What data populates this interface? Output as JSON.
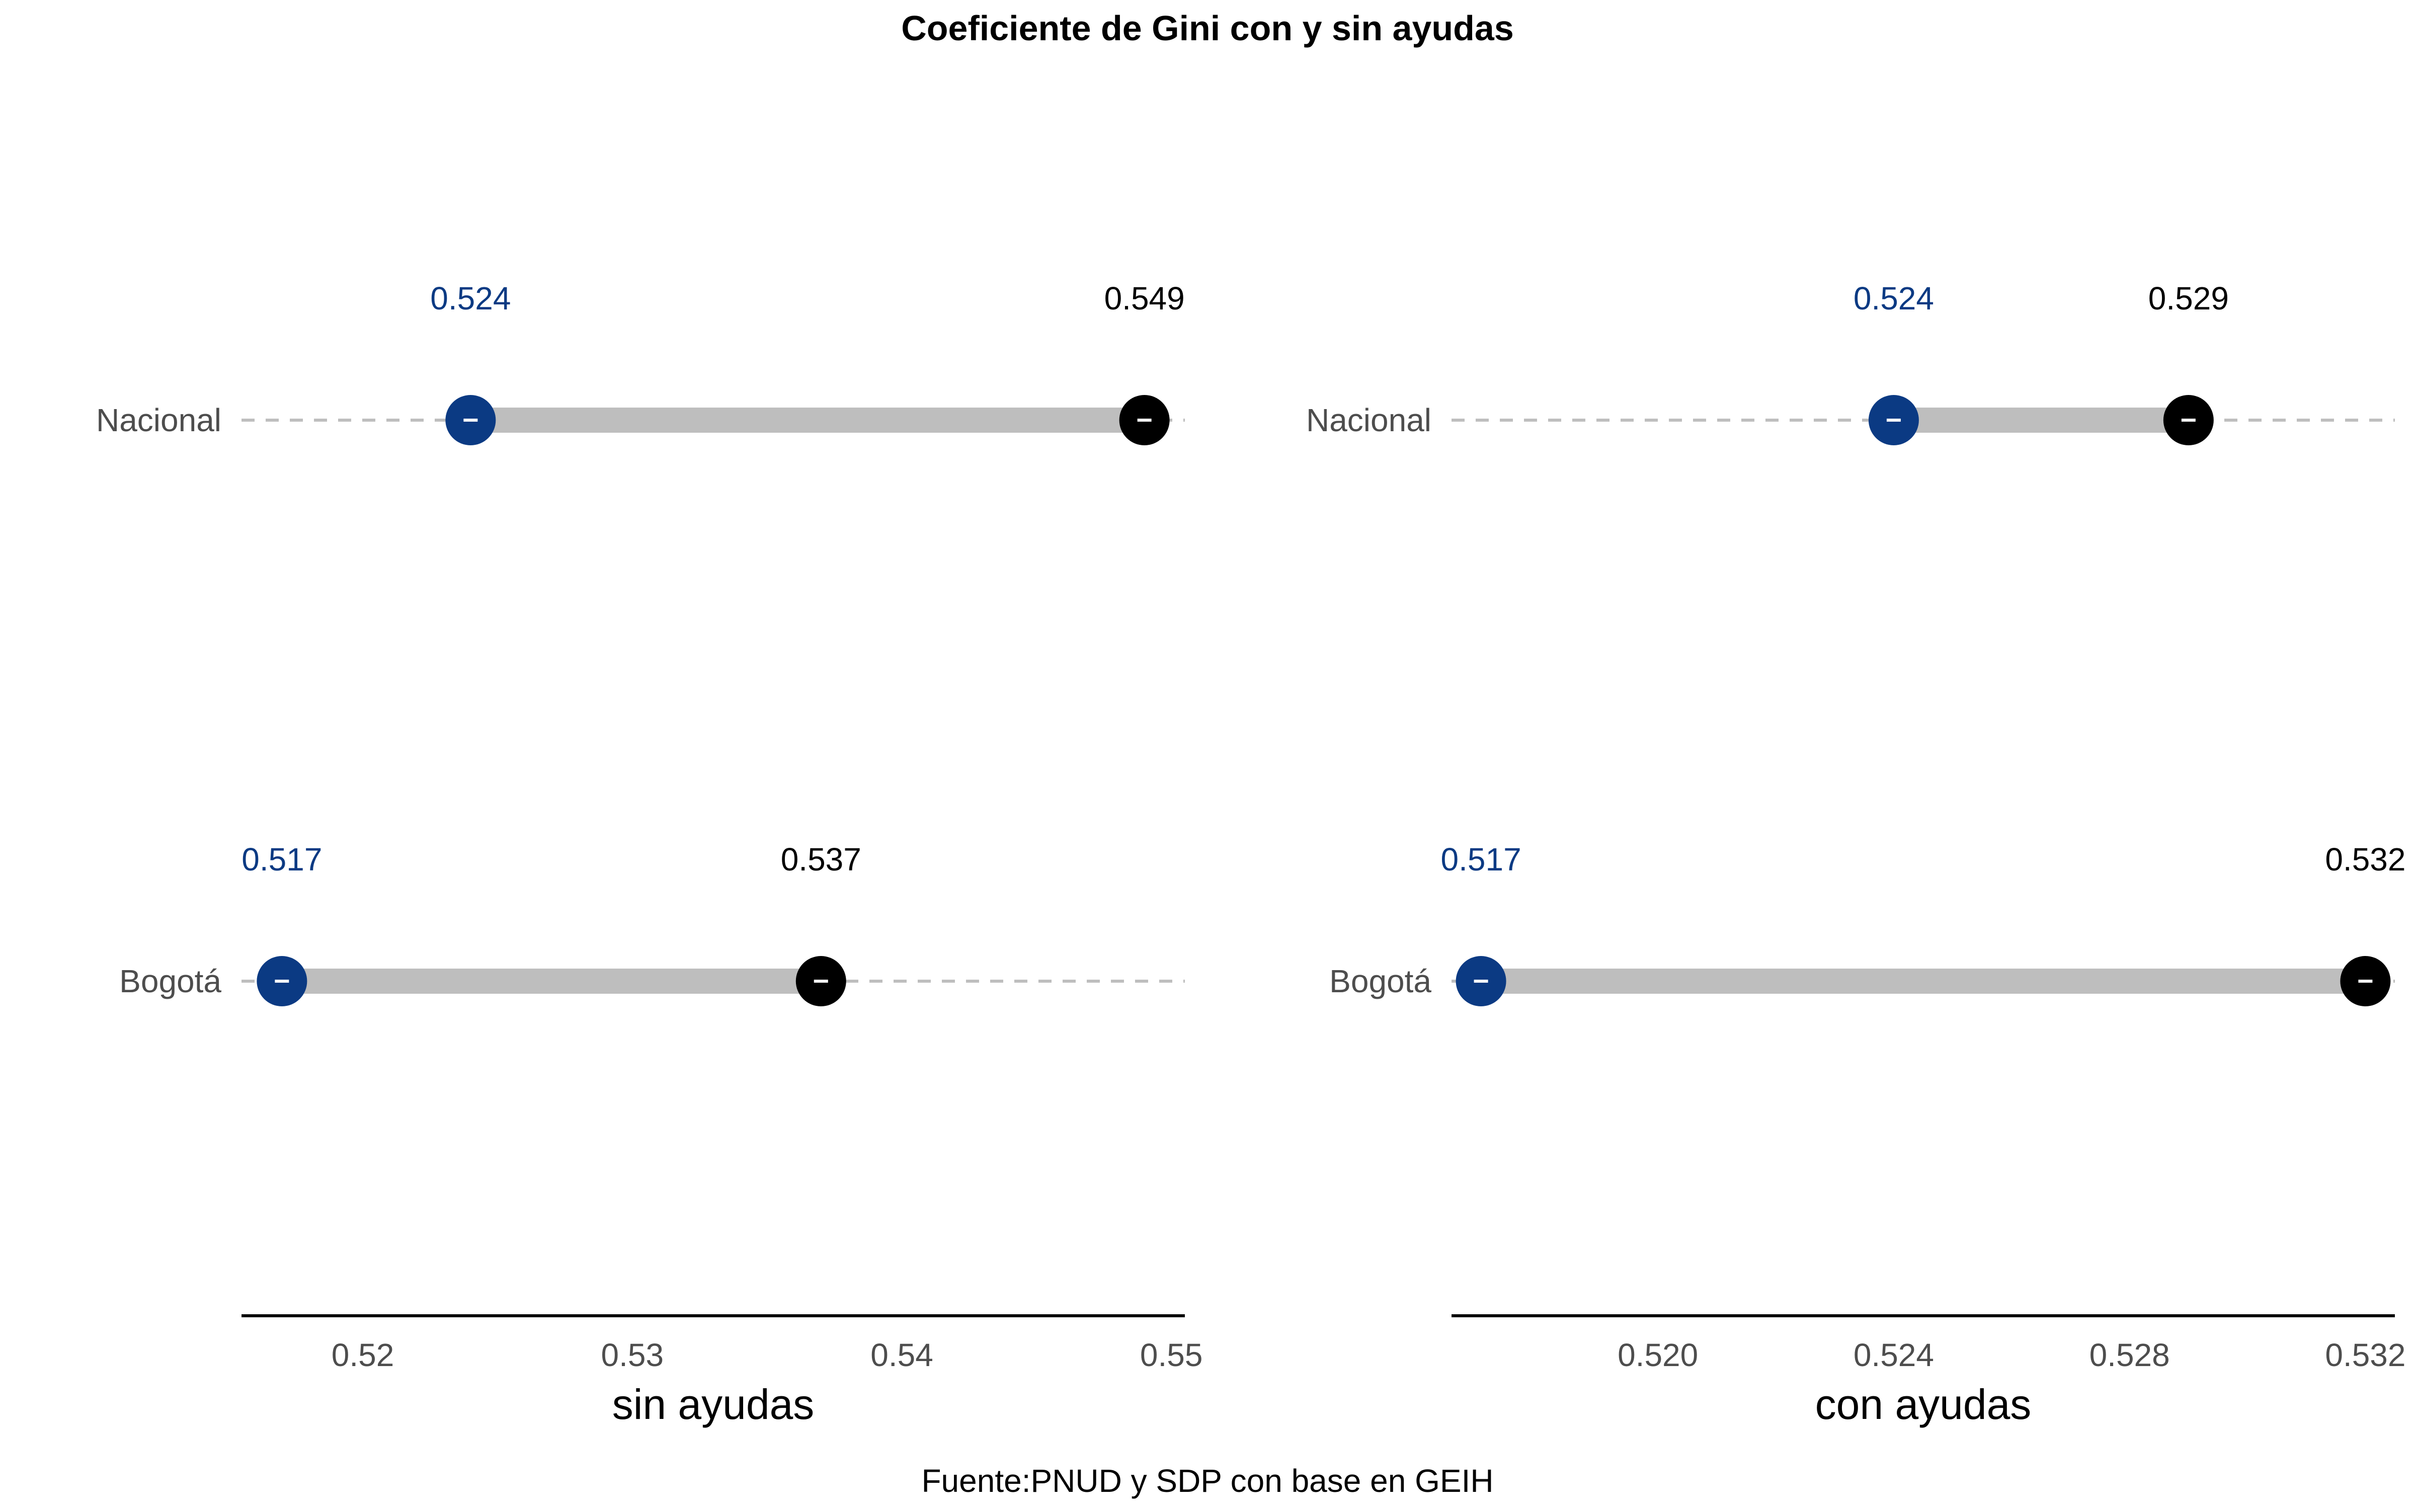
{
  "title": "Coeficiente de Gini con y sin ayudas",
  "caption": "Fuente:PNUD y SDP con base en GEIH",
  "colors": {
    "low_point": "#0B3A83",
    "high_point": "#000000",
    "segment": "#BEBEBE",
    "guide_line": "#BEBEBE",
    "axis_line": "#000000",
    "category_text": "#4D4D4D"
  },
  "chart_data": [
    {
      "type": "dumbbell",
      "xlabel": "sin ayudas",
      "xlim": [
        0.5155,
        0.5505
      ],
      "xticks": [
        0.52,
        0.53,
        0.54,
        0.55
      ],
      "xtick_labels": [
        "0.52",
        "0.53",
        "0.54",
        "0.55"
      ],
      "categories": [
        "Nacional",
        "Bogotá"
      ],
      "low_values": [
        0.524,
        0.517
      ],
      "high_values": [
        0.549,
        0.537
      ],
      "low_labels": [
        "0.524",
        "0.517"
      ],
      "high_labels": [
        "0.549",
        "0.537"
      ]
    },
    {
      "type": "dumbbell",
      "xlabel": "con ayudas",
      "xlim": [
        0.5165,
        0.5325
      ],
      "xticks": [
        0.52,
        0.524,
        0.528,
        0.532
      ],
      "xtick_labels": [
        "0.520",
        "0.524",
        "0.528",
        "0.532"
      ],
      "categories": [
        "Nacional",
        "Bogotá"
      ],
      "low_values": [
        0.524,
        0.517
      ],
      "high_values": [
        0.529,
        0.532
      ],
      "low_labels": [
        "0.524",
        "0.517"
      ],
      "high_labels": [
        "0.529",
        "0.532"
      ]
    }
  ]
}
